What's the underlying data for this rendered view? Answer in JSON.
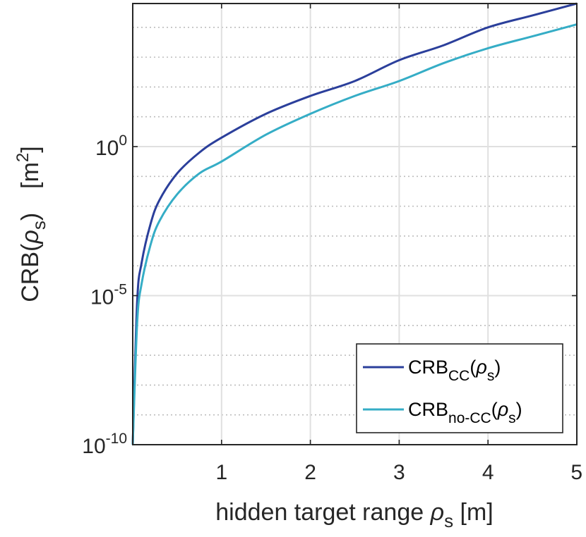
{
  "chart_data": {
    "type": "line",
    "title": "",
    "xlabel": {
      "main": "hidden target range ",
      "symbol": "ρ",
      "subscript": "s",
      "unit": " [m]"
    },
    "ylabel": {
      "main": "CRB(",
      "symbol": "ρ",
      "subscript": "s",
      "close": ")",
      "unit_open": "[m",
      "unit_sup": "2",
      "unit_close": "]"
    },
    "xlim": [
      0,
      5
    ],
    "ylim_exponent": [
      -10,
      4.8
    ],
    "yscale": "log",
    "xticks": [
      {
        "value": 1,
        "label": "1"
      },
      {
        "value": 2,
        "label": "2"
      },
      {
        "value": 3,
        "label": "3"
      },
      {
        "value": 4,
        "label": "4"
      },
      {
        "value": 5,
        "label": "5"
      }
    ],
    "yticks": [
      {
        "exp": -10,
        "base": "10",
        "sup": "-10"
      },
      {
        "exp": -5,
        "base": "10",
        "sup": "-5"
      },
      {
        "exp": 0,
        "base": "10",
        "sup": "0"
      }
    ],
    "grid": true,
    "minor_grid": true,
    "legend_position": "bottom-right",
    "series": [
      {
        "name": {
          "main": "CRB",
          "sub": "CC",
          "open": "(",
          "symbol": "ρ",
          "sub2": "s",
          "close": ")"
        },
        "color": "#2b3f9b",
        "x": [
          0.0,
          0.05,
          0.1,
          0.2,
          0.3,
          0.5,
          0.75,
          1.0,
          1.5,
          2.0,
          2.5,
          3.0,
          3.5,
          4.0,
          4.5,
          5.0
        ],
        "log10_y": [
          -10.0,
          -5.2,
          -3.9,
          -2.6,
          -1.8,
          -0.9,
          -0.2,
          0.3,
          1.1,
          1.7,
          2.2,
          2.9,
          3.4,
          4.0,
          4.4,
          4.8
        ]
      },
      {
        "name": {
          "main": "CRB",
          "sub": "no-CC",
          "open": "(",
          "symbol": "ρ",
          "sub2": "s",
          "close": ")"
        },
        "color": "#35adc6",
        "x": [
          0.0,
          0.05,
          0.1,
          0.2,
          0.3,
          0.5,
          0.75,
          1.0,
          1.5,
          2.0,
          2.5,
          3.0,
          3.5,
          4.0,
          4.5,
          5.0
        ],
        "log10_y": [
          -10.0,
          -5.9,
          -4.6,
          -3.3,
          -2.5,
          -1.6,
          -0.9,
          -0.5,
          0.4,
          1.1,
          1.7,
          2.2,
          2.8,
          3.3,
          3.7,
          4.1
        ]
      }
    ]
  }
}
